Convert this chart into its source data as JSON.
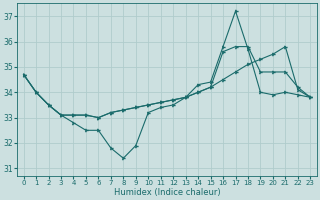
{
  "xlabel": "Humidex (Indice chaleur)",
  "xlim": [
    -0.5,
    23.5
  ],
  "ylim": [
    30.7,
    37.5
  ],
  "yticks": [
    31,
    32,
    33,
    34,
    35,
    36,
    37
  ],
  "xticks": [
    0,
    1,
    2,
    3,
    4,
    5,
    6,
    7,
    8,
    9,
    10,
    11,
    12,
    13,
    14,
    15,
    16,
    17,
    18,
    19,
    20,
    21,
    22,
    23
  ],
  "bg_color": "#cce0e0",
  "grid_color": "#b0cccc",
  "line_color": "#1a6b6b",
  "line1_x": [
    0,
    1,
    2,
    3,
    4,
    5,
    6,
    7,
    8,
    9,
    10,
    11,
    12,
    13,
    14,
    15,
    16,
    17,
    18,
    19,
    20,
    21,
    22,
    23
  ],
  "line1_y": [
    34.7,
    34.0,
    33.5,
    33.1,
    32.8,
    32.5,
    32.5,
    31.8,
    31.4,
    31.9,
    33.2,
    33.4,
    33.5,
    33.8,
    34.3,
    34.4,
    35.8,
    37.2,
    35.7,
    34.0,
    33.9,
    34.0,
    33.9,
    33.8
  ],
  "line2_x": [
    0,
    1,
    2,
    3,
    4,
    5,
    6,
    7,
    8,
    9,
    10,
    11,
    12,
    13,
    14,
    15,
    16,
    17,
    18,
    19,
    20,
    21,
    22,
    23
  ],
  "line2_y": [
    34.7,
    34.0,
    33.5,
    33.1,
    33.1,
    33.1,
    33.0,
    33.2,
    33.3,
    33.4,
    33.5,
    33.6,
    33.7,
    33.8,
    34.0,
    34.2,
    34.5,
    34.8,
    35.1,
    35.3,
    35.5,
    35.8,
    34.1,
    33.8
  ],
  "line3_x": [
    0,
    1,
    2,
    3,
    4,
    5,
    6,
    7,
    8,
    9,
    10,
    11,
    12,
    13,
    14,
    15,
    16,
    17,
    18,
    19,
    20,
    21,
    22,
    23
  ],
  "line3_y": [
    34.7,
    34.0,
    33.5,
    33.1,
    33.1,
    33.1,
    33.0,
    33.2,
    33.3,
    33.4,
    33.5,
    33.6,
    33.7,
    33.8,
    34.0,
    34.2,
    35.6,
    35.8,
    35.8,
    34.8,
    34.8,
    34.8,
    34.2,
    33.8
  ],
  "marker": "4",
  "markersize": 3,
  "linewidth": 0.8,
  "tick_fontsize": 5,
  "xlabel_fontsize": 6
}
